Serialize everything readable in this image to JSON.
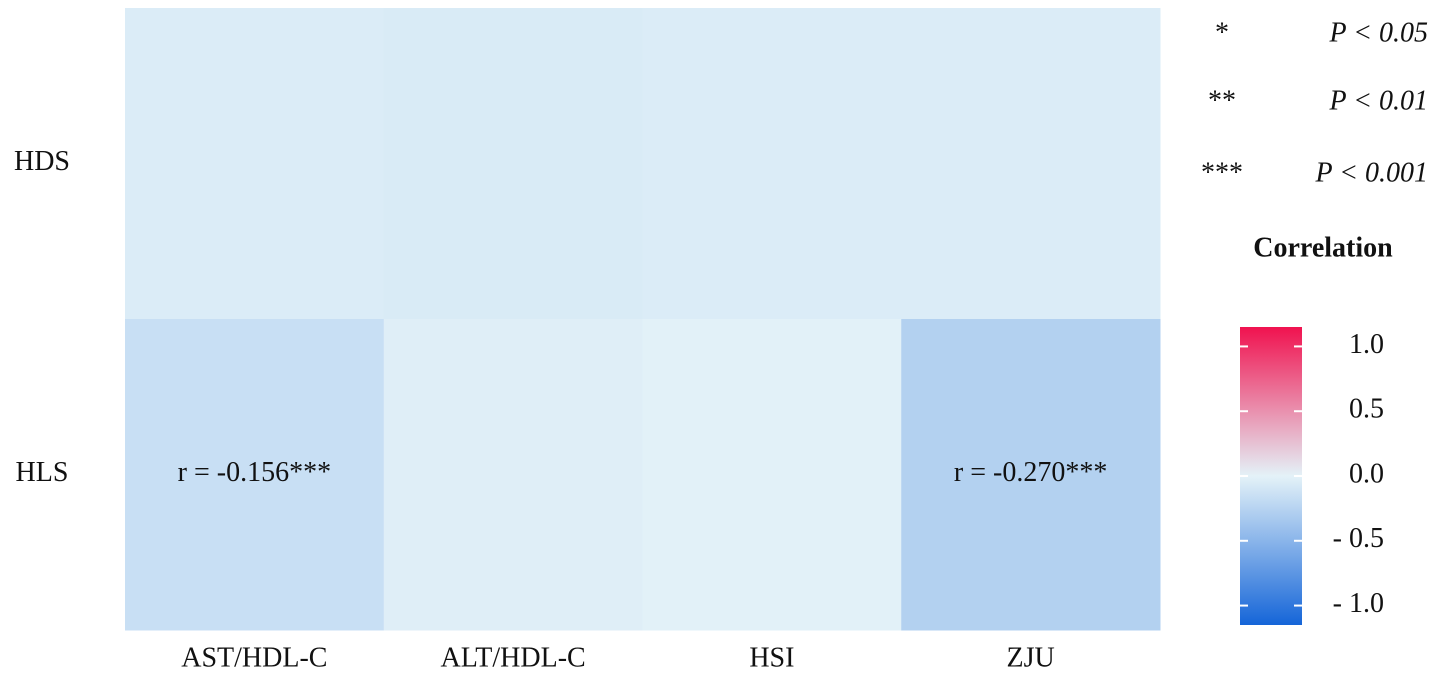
{
  "chart_data": {
    "type": "heatmap",
    "rows": [
      "HDS",
      "HLS"
    ],
    "columns": [
      "AST/HDL-C",
      "ALT/HDL-C",
      "HSI",
      "ZJU"
    ],
    "values": [
      [
        -0.05,
        -0.06,
        -0.05,
        -0.05
      ],
      [
        -0.156,
        -0.03,
        -0.01,
        -0.27
      ]
    ],
    "value_labels": [
      [
        null,
        null,
        null,
        null
      ],
      [
        "r = -0.156***",
        null,
        null,
        "r = -0.270***"
      ]
    ],
    "significance_legend": [
      {
        "symbol": "*",
        "label": "P < 0.05"
      },
      {
        "symbol": "**",
        "label": "P < 0.01"
      },
      {
        "symbol": "***",
        "label": "P < 0.001"
      }
    ],
    "colorbar": {
      "title": "Correlation",
      "lim": [
        -1.15,
        1.15
      ],
      "colors": [
        "#1565d8",
        "#e4f2f8",
        "#f0124f"
      ],
      "ticks": [
        {
          "value": 1,
          "label": "1.0"
        },
        {
          "value": 0.5,
          "label": "0.5"
        },
        {
          "value": 0,
          "label": "0.0"
        },
        {
          "value": -0.5,
          "label": "- 0.5"
        },
        {
          "value": -1,
          "label": "- 1.0"
        }
      ]
    }
  }
}
